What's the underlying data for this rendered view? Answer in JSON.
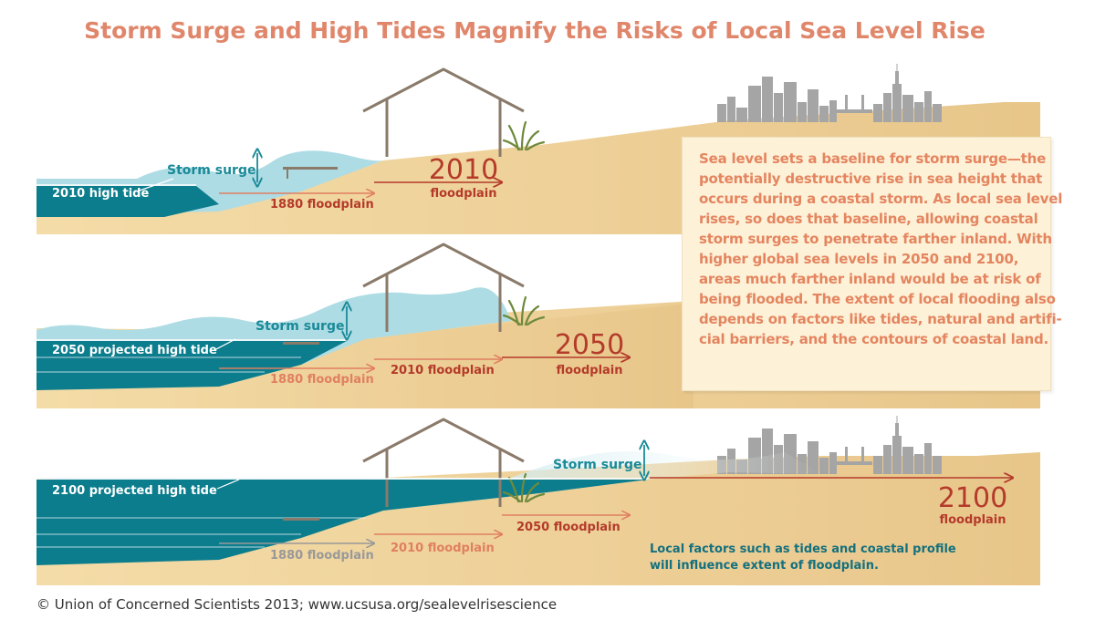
{
  "title": "Storm Surge and High Tides Magnify the Risks of Local Sea Level Rise",
  "colors": {
    "title": "#e0866a",
    "sand": "#ebc98e",
    "sand_light": "#f2d8a2",
    "surge": "#aedce4",
    "tide_water": "#0c7d8d",
    "arrow_2010": "#b43a2a",
    "arrow_1880": "#e07f62",
    "arrow_2050": "#b43a2a",
    "arrow_old": "#999999",
    "house": "#8a7a6a",
    "city": "#a4a4a4",
    "note": "#14707e"
  },
  "panels": [
    {
      "id": "2010",
      "tide_label": "2010 high tide",
      "surge_label": "Storm surge",
      "floodplain_year": "2010",
      "floodplain_word": "floodplain",
      "arrows": [
        {
          "label": "1880 floodplain"
        }
      ]
    },
    {
      "id": "2050",
      "tide_label": "2050 projected high tide",
      "surge_label": "Storm surge",
      "floodplain_year": "2050",
      "floodplain_word": "floodplain",
      "arrows": [
        {
          "label": "2010 floodplain"
        },
        {
          "label": "1880 floodplain"
        }
      ]
    },
    {
      "id": "2100",
      "tide_label": "2100 projected high tide",
      "surge_label": "Storm surge",
      "floodplain_year": "2100",
      "floodplain_word": "floodplain",
      "arrows": [
        {
          "label": "2050 floodplain"
        },
        {
          "label": "2010 floodplain"
        },
        {
          "label": "1880 floodplain"
        }
      ]
    }
  ],
  "info_box": {
    "lines": [
      "Sea level sets a baseline for storm surge—the",
      "potentially destructive rise in sea height that",
      "occurs during a coastal storm. As local sea level",
      "rises, so does that baseline, allowing coastal",
      "storm surges to penetrate farther inland. With",
      "higher global sea levels in 2050 and 2100,",
      "areas much farther inland would be at risk of",
      "being flooded. The extent of local flooding also",
      "depends on factors like tides, natural and artifi-",
      "cial barriers, and the contours of coastal land."
    ]
  },
  "note": {
    "lines": [
      "Local factors such as tides and coastal profile",
      "will influence extent of floodplain."
    ]
  },
  "credit": "© Union of Concerned Scientists 2013; www.ucsusa.org/sealevelrisescience"
}
